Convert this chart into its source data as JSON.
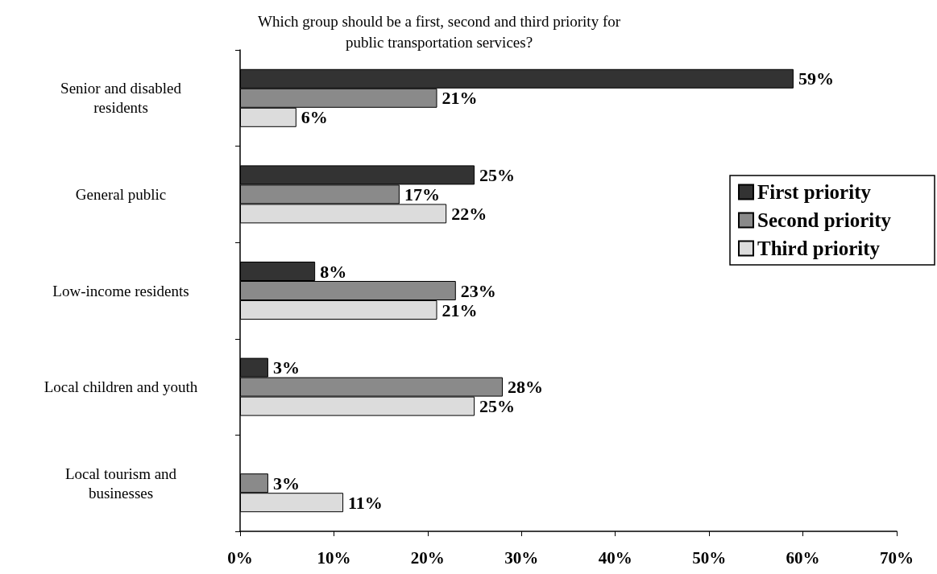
{
  "chart_data": {
    "type": "bar",
    "orientation": "horizontal",
    "title": "Which group should be a first, second and third priority for\npublic transportation services?",
    "categories": [
      "Senior and disabled\nresidents",
      "General public",
      "Low-income residents",
      "Local children and youth",
      "Local tourism and\nbusinesses"
    ],
    "series": [
      {
        "name": "First priority",
        "color": "#333333",
        "values": [
          59,
          25,
          8,
          3,
          null
        ],
        "value_labels": [
          "59%",
          "25%",
          "8%",
          "3%",
          null
        ]
      },
      {
        "name": "Second priority",
        "color": "#8a8a8a",
        "values": [
          21,
          17,
          23,
          28,
          3
        ],
        "value_labels": [
          "21%",
          "17%",
          "23%",
          "28%",
          "3%"
        ]
      },
      {
        "name": "Third priority",
        "color": "#dcdcdc",
        "values": [
          6,
          22,
          21,
          25,
          11
        ],
        "value_labels": [
          "6%",
          "22%",
          "21%",
          "25%",
          "11%"
        ]
      }
    ],
    "xlim": [
      0,
      70
    ],
    "xticks": [
      {
        "value": 0,
        "label": "0%"
      },
      {
        "value": 10,
        "label": "10%"
      },
      {
        "value": 20,
        "label": "20%"
      },
      {
        "value": 30,
        "label": "30%"
      },
      {
        "value": 40,
        "label": "40%"
      },
      {
        "value": 50,
        "label": "50%"
      },
      {
        "value": 60,
        "label": "60%"
      },
      {
        "value": 70,
        "label": "70%"
      }
    ],
    "legend": "right",
    "grid": false
  }
}
